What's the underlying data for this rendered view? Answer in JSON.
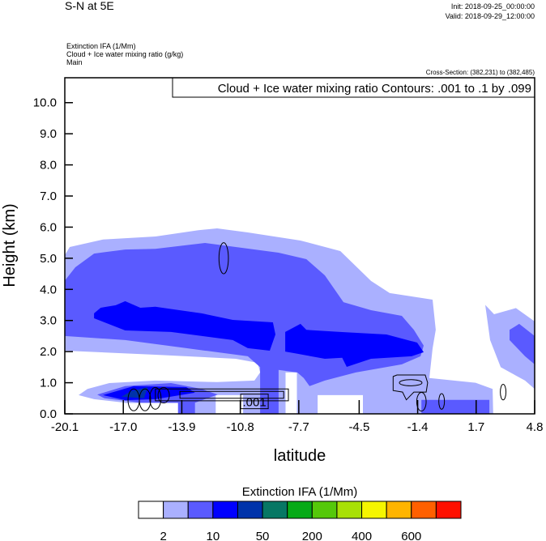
{
  "header": {
    "title": "S-N at 5E",
    "init": "Init: 2018-09-25_00:00:00",
    "valid": "Valid: 2018-09-29_12:00:00",
    "field1": "Extinction IFA   (1/Mm)",
    "field2": "Cloud + Ice water mixing ratio   (g/kg)",
    "field3": "Main",
    "cross_section": "Cross-Section: (382,231) to (382,485)"
  },
  "chart_data": {
    "type": "heatmap",
    "subtype": "filled contour cross-section with line contours",
    "contour_legend": "Cloud + Ice water mixing ratio Contours: .001 to .1 by .099",
    "xlabel": "latitude",
    "ylabel": "Height (km)",
    "xlim": [
      -20.1,
      4.8
    ],
    "ylim": [
      0,
      10.8
    ],
    "xticks": [
      "-20.1",
      "-17.0",
      "-13.9",
      "-10.8",
      "-7.7",
      "-4.5",
      "-1.4",
      "1.7",
      "4.8"
    ],
    "xtick_values": [
      -20.1,
      -17.0,
      -13.9,
      -10.8,
      -7.7,
      -4.5,
      -1.4,
      1.7,
      4.8
    ],
    "yticks": [
      "0.0",
      "1.0",
      "2.0",
      "3.0",
      "4.0",
      "5.0",
      "6.0",
      "7.0",
      "8.0",
      "9.0",
      "10.0"
    ],
    "ytick_values": [
      0,
      1,
      2,
      3,
      4,
      5,
      6,
      7,
      8,
      9,
      10
    ],
    "grid": false,
    "colorbar": {
      "title": "Extinction IFA  (1/Mm)",
      "colors": [
        "#ffffff",
        "#aab0ff",
        "#5a5aff",
        "#0000ff",
        "#0033aa",
        "#077764",
        "#07aa17",
        "#55c80a",
        "#a8e005",
        "#f5f500",
        "#ffb400",
        "#ff6000",
        "#ff1000"
      ],
      "labels": [
        "2",
        "10",
        "50",
        "200",
        "400",
        "600"
      ],
      "label_after_box": [
        1,
        3,
        5,
        7,
        9,
        11
      ]
    },
    "filled_regions": [
      {
        "color": "#aab0ff",
        "points": [
          [
            -20.1,
            5.1
          ],
          [
            -19.84,
            5.36
          ],
          [
            -18.08,
            5.6
          ],
          [
            -15.29,
            5.7
          ],
          [
            -13.02,
            5.9
          ],
          [
            -12.03,
            5.96
          ],
          [
            -10.4,
            5.83
          ],
          [
            -7.61,
            5.57
          ],
          [
            -5.5,
            5.23
          ],
          [
            -3.87,
            4.27
          ],
          [
            -2.88,
            3.88
          ],
          [
            -0.61,
            3.67
          ],
          [
            -0.44,
            2.7
          ],
          [
            -0.61,
            2.1
          ],
          [
            -0.78,
            1.15
          ],
          [
            1.67,
            1.0
          ],
          [
            2.57,
            0.8
          ],
          [
            2.6,
            0
          ],
          [
            -20.1,
            0
          ]
        ]
      },
      {
        "color": "#aab0ff",
        "points": [
          [
            2.18,
            3.5
          ],
          [
            2.65,
            3.2
          ],
          [
            3.81,
            3.4
          ],
          [
            4.8,
            2.97
          ],
          [
            4.8,
            0.8
          ],
          [
            4.29,
            1.07
          ],
          [
            3.0,
            1.5
          ],
          [
            2.44,
            2.37
          ]
        ]
      },
      {
        "color": "#ffffff",
        "points": [
          [
            -20.1,
            2.03
          ],
          [
            -15.3,
            1.9
          ],
          [
            -11.04,
            1.77
          ],
          [
            -9.88,
            1.64
          ],
          [
            -9.75,
            1.33
          ],
          [
            -10.05,
            1.07
          ],
          [
            -12.03,
            1.02
          ],
          [
            -15.3,
            1.07
          ],
          [
            -17.74,
            0.99
          ],
          [
            -18.9,
            0.8
          ],
          [
            -19.37,
            0.6
          ],
          [
            -18.55,
            0.47
          ],
          [
            -16.9,
            0.36
          ],
          [
            -16.9,
            0
          ],
          [
            -20.1,
            0
          ]
        ]
      },
      {
        "color": "#ffffff",
        "points": [
          [
            -16.9,
            0
          ],
          [
            -16.9,
            0.35
          ],
          [
            -14.1,
            0.35
          ],
          [
            -14.1,
            0
          ]
        ]
      },
      {
        "color": "#ffffff",
        "points": [
          [
            -12.1,
            0
          ],
          [
            -12.1,
            0.6
          ],
          [
            -10.65,
            0.6
          ],
          [
            -10.65,
            0
          ]
        ]
      },
      {
        "color": "#ffffff",
        "points": [
          [
            -8.4,
            0
          ],
          [
            -8.4,
            1.33
          ],
          [
            -7.8,
            1.33
          ],
          [
            -7.8,
            0
          ]
        ]
      },
      {
        "color": "#ffffff",
        "points": [
          [
            -6.7,
            0
          ],
          [
            -6.7,
            0.6
          ],
          [
            -4.3,
            0.6
          ],
          [
            -4.3,
            0
          ]
        ]
      },
      {
        "color": "#5a5aff",
        "points": [
          [
            -20.1,
            4.28
          ],
          [
            -19.54,
            4.71
          ],
          [
            -18.55,
            5.15
          ],
          [
            -16.9,
            5.28
          ],
          [
            -15.3,
            5.3
          ],
          [
            -12.67,
            5.49
          ],
          [
            -11.04,
            5.36
          ],
          [
            -8.77,
            5.18
          ],
          [
            -7.3,
            4.97
          ],
          [
            -6.32,
            4.45
          ],
          [
            -5.33,
            3.59
          ],
          [
            -3.87,
            3.33
          ],
          [
            -2.24,
            3.15
          ],
          [
            -1.6,
            2.7
          ],
          [
            -1.08,
            2.19
          ],
          [
            -1.25,
            1.85
          ],
          [
            -2.24,
            1.59
          ],
          [
            -4.68,
            1.33
          ],
          [
            -6.32,
            1.07
          ],
          [
            -7.13,
            0.89
          ],
          [
            -7.44,
            1.15
          ],
          [
            -7.78,
            1.33
          ],
          [
            -8.77,
            1.41
          ],
          [
            -8.77,
            0
          ],
          [
            -9.75,
            0
          ],
          [
            -9.75,
            1.5
          ],
          [
            -10.4,
            1.85
          ],
          [
            -13.66,
            2.11
          ],
          [
            -16.9,
            2.37
          ],
          [
            -20.1,
            2.5
          ]
        ]
      },
      {
        "color": "#5a5aff",
        "points": [
          [
            -18.38,
            0.62
          ],
          [
            -16.9,
            0.89
          ],
          [
            -14.47,
            0.99
          ],
          [
            -12.85,
            0.8
          ],
          [
            -12.0,
            0.62
          ],
          [
            -13.2,
            0.36
          ],
          [
            -16.1,
            0.36
          ],
          [
            -18.0,
            0.5
          ]
        ]
      },
      {
        "color": "#5a5aff",
        "points": [
          [
            -14.1,
            0
          ],
          [
            -14.1,
            0.4
          ],
          [
            -13.2,
            0.4
          ],
          [
            -13.2,
            0
          ]
        ]
      },
      {
        "color": "#5a5aff",
        "points": [
          [
            -1.2,
            0
          ],
          [
            -1.2,
            0.45
          ],
          [
            2.4,
            0.45
          ],
          [
            2.4,
            0
          ]
        ]
      },
      {
        "color": "#5a5aff",
        "points": [
          [
            3.47,
            2.7
          ],
          [
            3.98,
            2.89
          ],
          [
            4.8,
            2.5
          ],
          [
            4.8,
            1.59
          ],
          [
            4.29,
            1.85
          ],
          [
            3.47,
            2.37
          ]
        ]
      },
      {
        "color": "#0000ff",
        "points": [
          [
            -18.55,
            3.23
          ],
          [
            -18.2,
            3.41
          ],
          [
            -17.4,
            3.49
          ],
          [
            -16.9,
            3.62
          ],
          [
            -16.1,
            3.41
          ],
          [
            -15.3,
            3.44
          ],
          [
            -12.85,
            3.23
          ],
          [
            -11.2,
            3.02
          ],
          [
            -9.07,
            2.94
          ],
          [
            -8.94,
            2.55
          ],
          [
            -9.24,
            2.03
          ],
          [
            -10.4,
            2.11
          ],
          [
            -11.2,
            2.37
          ],
          [
            -14.47,
            2.63
          ],
          [
            -16.9,
            2.68
          ],
          [
            -18.55,
            3.07
          ]
        ]
      },
      {
        "color": "#0000ff",
        "points": [
          [
            -8.42,
            2.63
          ],
          [
            -7.61,
            2.89
          ],
          [
            -7.3,
            2.7
          ],
          [
            -5.5,
            2.63
          ],
          [
            -3.05,
            2.55
          ],
          [
            -1.43,
            2.29
          ],
          [
            -1.08,
            1.98
          ],
          [
            -1.72,
            1.85
          ],
          [
            -3.87,
            1.77
          ],
          [
            -5.16,
            1.51
          ],
          [
            -5.4,
            1.8
          ],
          [
            -6.32,
            1.77
          ],
          [
            -7.78,
            1.93
          ],
          [
            -8.42,
            2.0
          ]
        ]
      },
      {
        "color": "#0000ff",
        "points": [
          [
            -18.08,
            0.6
          ],
          [
            -16.45,
            0.89
          ],
          [
            -13.66,
            0.86
          ],
          [
            -13.2,
            0.68
          ],
          [
            -15.29,
            0.47
          ],
          [
            -16.9,
            0.44
          ]
        ]
      },
      {
        "color": "#0033aa",
        "points": [
          [
            -16.58,
            0.73
          ],
          [
            -15.7,
            0.86
          ],
          [
            -15.9,
            0.5
          ],
          [
            -17.1,
            0.55
          ]
        ]
      }
    ],
    "line_contours": [
      {
        "shape": "ellipse",
        "center": [
          -11.68,
          5.0
        ],
        "radii": [
          0.25,
          0.5
        ]
      },
      {
        "shape": "polygon",
        "points": [
          [
            -15.3,
            0.8
          ],
          [
            -8.25,
            0.8
          ],
          [
            -8.25,
            0.42
          ],
          [
            -15.3,
            0.42
          ]
        ]
      },
      {
        "shape": "polygon",
        "points": [
          [
            -14.0,
            0.72
          ],
          [
            -8.5,
            0.72
          ],
          [
            -8.5,
            0.5
          ],
          [
            -14.0,
            0.5
          ]
        ]
      },
      {
        "shape": "ellipse",
        "center": [
          -16.45,
          0.45
        ],
        "radii": [
          0.3,
          0.35
        ]
      },
      {
        "shape": "ellipse",
        "center": [
          -15.85,
          0.45
        ],
        "radii": [
          0.3,
          0.35
        ]
      },
      {
        "shape": "ellipse",
        "center": [
          -15.3,
          0.5
        ],
        "radii": [
          0.3,
          0.35
        ]
      },
      {
        "shape": "ellipse",
        "center": [
          -14.86,
          0.6
        ],
        "radii": [
          0.3,
          0.25
        ]
      },
      {
        "shape": "polygon",
        "points": [
          [
            -2.7,
            1.2
          ],
          [
            -2.5,
            1.25
          ],
          [
            -1.0,
            1.25
          ],
          [
            -0.87,
            1.0
          ],
          [
            -0.95,
            0.7
          ],
          [
            -1.6,
            0.7
          ],
          [
            -2.0,
            0.45
          ],
          [
            -2.2,
            0.7
          ],
          [
            -2.7,
            0.75
          ]
        ]
      },
      {
        "shape": "ellipse",
        "center": [
          -1.77,
          1.0
        ],
        "radii": [
          0.6,
          0.1
        ]
      },
      {
        "shape": "ellipse",
        "center": [
          -1.2,
          0.39
        ],
        "radii": [
          0.25,
          0.3
        ]
      },
      {
        "shape": "ellipse",
        "center": [
          -0.13,
          0.4
        ],
        "radii": [
          0.15,
          0.25
        ]
      },
      {
        "shape": "ellipse",
        "center": [
          3.13,
          0.7
        ],
        "radii": [
          0.15,
          0.25
        ]
      }
    ],
    "contour_labels": [
      {
        "text": ".001",
        "at": [
          -10.05,
          0.4
        ]
      }
    ]
  }
}
